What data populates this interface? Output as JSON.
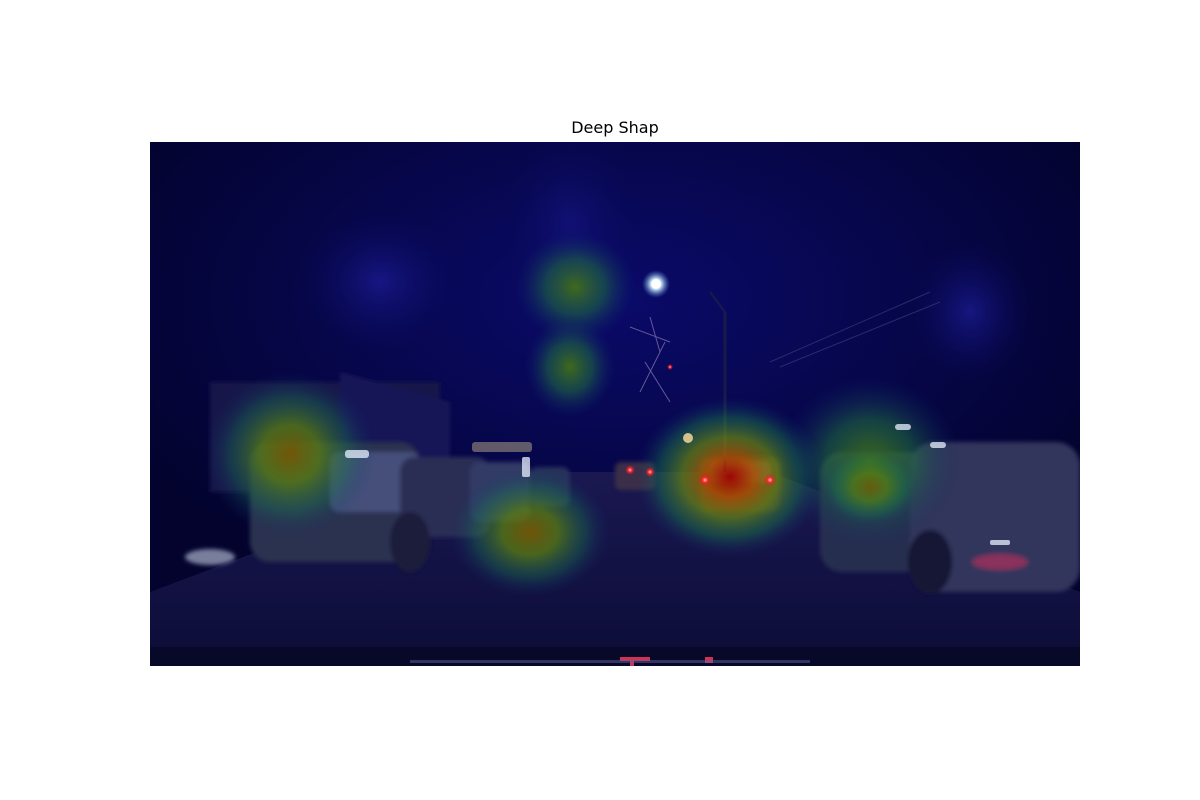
{
  "figure": {
    "title": "Deep Shap"
  },
  "overlay": {
    "colormap": "jet",
    "colors": {
      "low": "#000066",
      "mid": "#2a8a3a",
      "high": "#b00000",
      "street_light": "#e8f6ff",
      "tail_light": "#ff2a3a"
    }
  }
}
